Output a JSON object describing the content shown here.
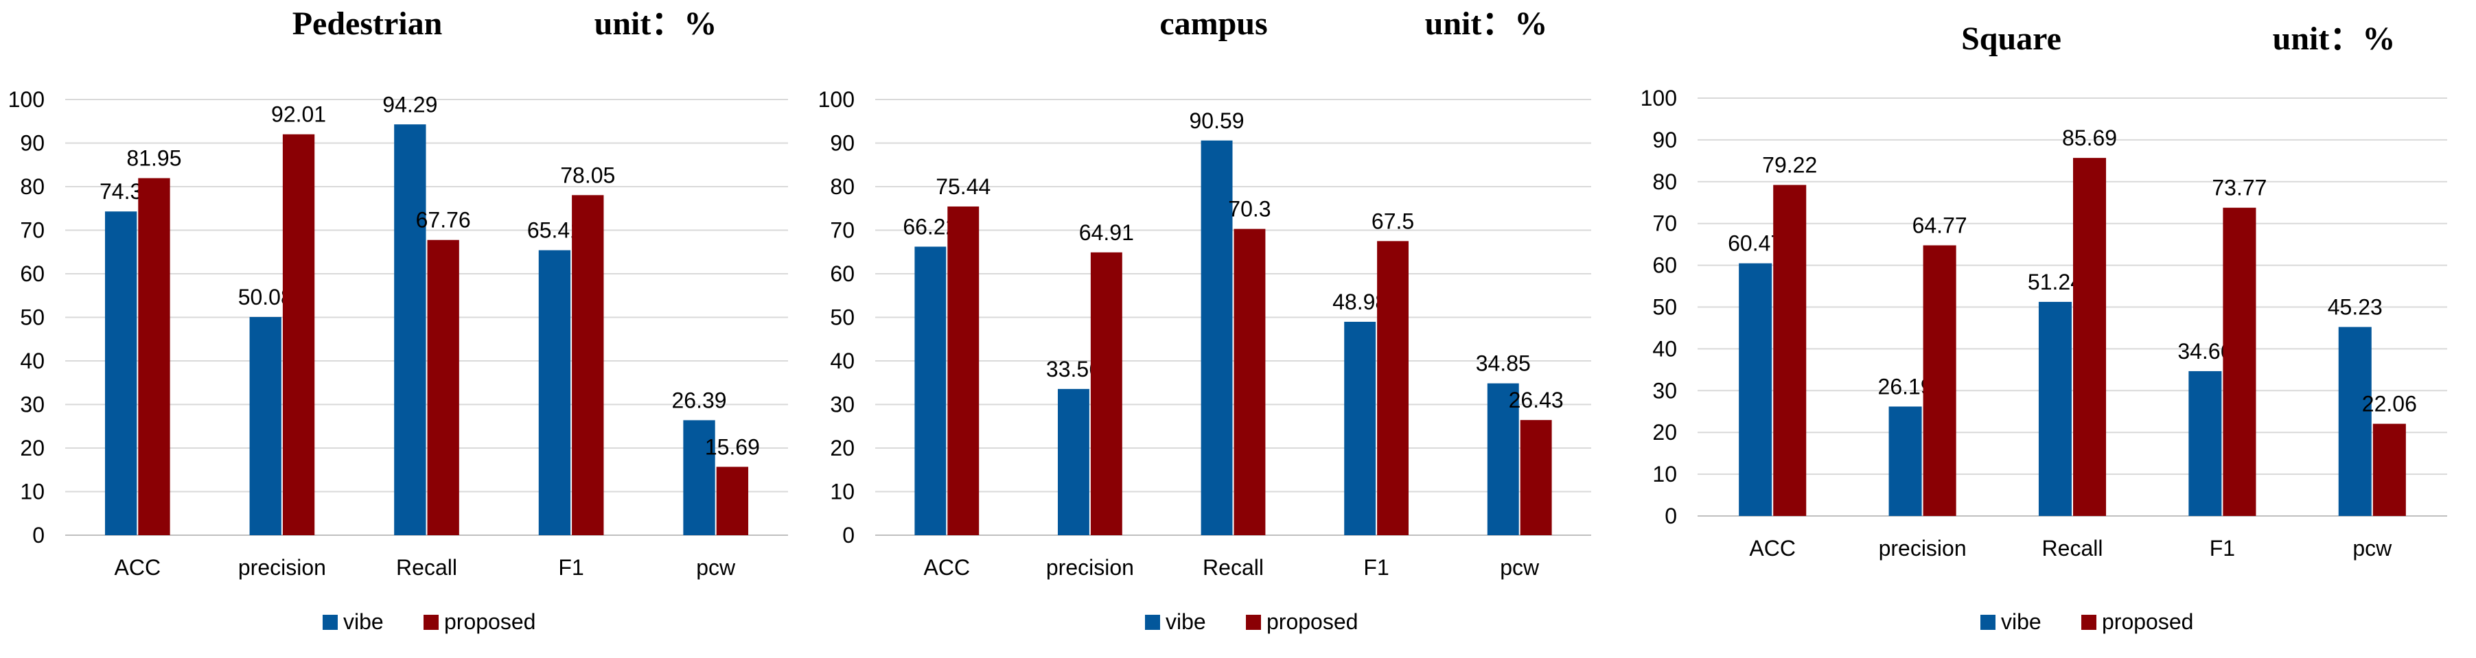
{
  "colors": {
    "vibe": "#03579B",
    "proposed": "#8A0004",
    "grid": "#D9D9D9",
    "axis": "#BFBFBF",
    "text": "#000000"
  },
  "chart_data": [
    {
      "type": "bar",
      "title": "Pedestrian",
      "unit_label": "unit：%",
      "categories": [
        "ACC",
        "precision",
        "Recall",
        "F1",
        "pcw"
      ],
      "series": [
        {
          "name": "vibe",
          "values": [
            74.3,
            50.08,
            94.29,
            65.41,
            26.39
          ]
        },
        {
          "name": "proposed",
          "values": [
            81.95,
            92.01,
            67.76,
            78.05,
            15.69
          ]
        }
      ],
      "ylim": [
        0,
        100
      ],
      "yticks": [
        0,
        10,
        20,
        30,
        40,
        50,
        60,
        70,
        80,
        90,
        100
      ],
      "xlabel": "",
      "ylabel": "",
      "grid": true,
      "legend": "bottom-center"
    },
    {
      "type": "bar",
      "title": "campus",
      "unit_label": "unit：%",
      "categories": [
        "ACC",
        "precision",
        "Recall",
        "F1",
        "pcw"
      ],
      "series": [
        {
          "name": "vibe",
          "values": [
            66.22,
            33.56,
            90.59,
            48.98,
            34.85
          ]
        },
        {
          "name": "proposed",
          "values": [
            75.44,
            64.91,
            70.3,
            67.5,
            26.43
          ]
        }
      ],
      "ylim": [
        0,
        100
      ],
      "yticks": [
        0,
        10,
        20,
        30,
        40,
        50,
        60,
        70,
        80,
        90,
        100
      ],
      "xlabel": "",
      "ylabel": "",
      "grid": true,
      "legend": "bottom-center"
    },
    {
      "type": "bar",
      "title": "Square",
      "unit_label": "unit：%",
      "categories": [
        "ACC",
        "precision",
        "Recall",
        "F1",
        "pcw"
      ],
      "series": [
        {
          "name": "vibe",
          "values": [
            60.47,
            26.19,
            51.24,
            34.66,
            45.23
          ]
        },
        {
          "name": "proposed",
          "values": [
            79.22,
            64.77,
            85.69,
            73.77,
            22.06
          ]
        }
      ],
      "ylim": [
        0,
        100
      ],
      "yticks": [
        0,
        10,
        20,
        30,
        40,
        50,
        60,
        70,
        80,
        90,
        100
      ],
      "xlabel": "",
      "ylabel": "",
      "grid": true,
      "legend": "bottom-center"
    }
  ]
}
